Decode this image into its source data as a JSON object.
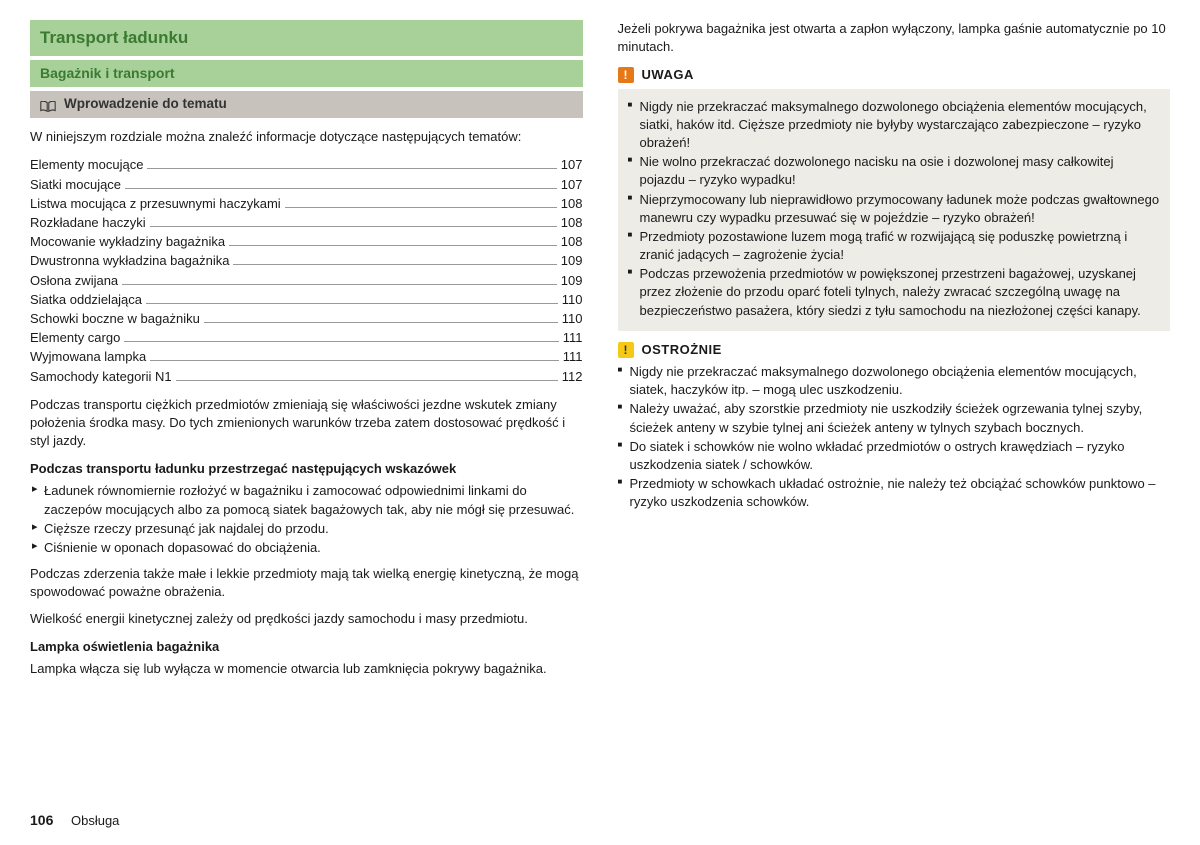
{
  "colors": {
    "green_bar": "#a8d199",
    "green_text": "#3a7a33",
    "grey_bar": "#c7c2bb",
    "warn_orange": "#e67817",
    "warn_yellow": "#f6c917",
    "warn_bg": "#eeece7"
  },
  "left": {
    "main_title": "Transport ładunku",
    "sub_title": "Bagażnik i transport",
    "intro_title": "Wprowadzenie do tematu",
    "intro_para": "W niniejszym rozdziale można znaleźć informacje dotyczące następujących tematów:",
    "toc": [
      {
        "label": "Elementy mocujące",
        "page": "107"
      },
      {
        "label": "Siatki mocujące",
        "page": "107"
      },
      {
        "label": "Listwa mocująca z przesuwnymi haczykami",
        "page": "108"
      },
      {
        "label": "Rozkładane haczyki",
        "page": "108"
      },
      {
        "label": "Mocowanie wykładziny bagażnika",
        "page": "108"
      },
      {
        "label": "Dwustronna wykładzina bagażnika",
        "page": "109"
      },
      {
        "label": "Osłona zwijana",
        "page": "109"
      },
      {
        "label": "Siatka oddzielająca",
        "page": "110"
      },
      {
        "label": "Schowki boczne w bagażniku",
        "page": "110"
      },
      {
        "label": "Elementy cargo",
        "page": "111"
      },
      {
        "label": "Wyjmowana lampka",
        "page": "111"
      },
      {
        "label": "Samochody kategorii N1",
        "page": "112"
      }
    ],
    "para1": "Podczas transportu ciężkich przedmiotów zmieniają się właściwości jezdne wskutek zmiany położenia środka masy. Do tych zmienionych warunków trzeba zatem dostosować prędkość i styl jazdy.",
    "bold1": "Podczas transportu ładunku przestrzegać następujących wskazówek",
    "bullets": [
      "Ładunek równomiernie rozłożyć w bagażniku i zamocować odpowiednimi linkami do zaczepów mocujących albo za pomocą siatek bagażowych tak, aby nie mógł się przesuwać.",
      "Cięższe rzeczy przesunąć jak najdalej do przodu.",
      "Ciśnienie w oponach dopasować do obciążenia."
    ],
    "para2": "Podczas zderzenia także małe i lekkie przedmioty mają tak wielką energię kinetyczną, że mogą spowodować poważne obrażenia.",
    "para3": "Wielkość energii kinetycznej zależy od prędkości jazdy samochodu i masy przedmiotu.",
    "bold2": "Lampka oświetlenia bagażnika",
    "para4": "Lampka włącza się lub wyłącza w momencie otwarcia lub zamknięcia pokrywy bagażnika."
  },
  "right": {
    "top_para": "Jeżeli pokrywa bagażnika jest otwarta a zapłon wyłączony, lampka gaśnie automatycznie po 10 minutach.",
    "uwaga_title": "UWAGA",
    "uwaga_items": [
      "Nigdy nie przekraczać maksymalnego dozwolonego obciążenia elementów mocujących, siatki, haków itd. Cięższe przedmioty nie byłyby wystarczająco zabezpieczone – ryzyko obrażeń!",
      "Nie wolno przekraczać dozwolonego nacisku na osie i dozwolonej masy całkowitej pojazdu – ryzyko wypadku!",
      "Nieprzymocowany lub nieprawidłowo przymocowany ładunek może podczas gwałtownego manewru czy wypadku przesuwać się w pojeździe – ryzyko obrażeń!",
      "Przedmioty pozostawione luzem mogą trafić w rozwijającą się poduszkę powietrzną i zranić jadących – zagrożenie życia!",
      "Podczas przewożenia przedmiotów w powiększonej przestrzeni bagażowej, uzyskanej przez złożenie do przodu oparć foteli tylnych, należy zwracać szczególną uwagę na bezpieczeństwo pasażera, który siedzi z tyłu samochodu na niezłożonej części kanapy."
    ],
    "ostroznie_title": "OSTROŻNIE",
    "ostroznie_items": [
      "Nigdy nie przekraczać maksymalnego dozwolonego obciążenia elementów mocujących, siatek, haczyków itp. – mogą ulec uszkodzeniu.",
      "Należy uważać, aby szorstkie przedmioty nie uszkodziły ścieżek ogrzewania tylnej szyby, ścieżek anteny w szybie tylnej ani ścieżek anteny w tylnych szybach bocznych.",
      "Do siatek i schowków nie wolno wkładać przedmiotów o ostrych krawędziach – ryzyko uszkodzenia siatek / schowków.",
      "Przedmioty w schowkach układać ostrożnie, nie należy też obciążać schowków punktowo – ryzyko uszkodzenia schowków."
    ]
  },
  "footer": {
    "page_number": "106",
    "section": "Obsługa"
  }
}
